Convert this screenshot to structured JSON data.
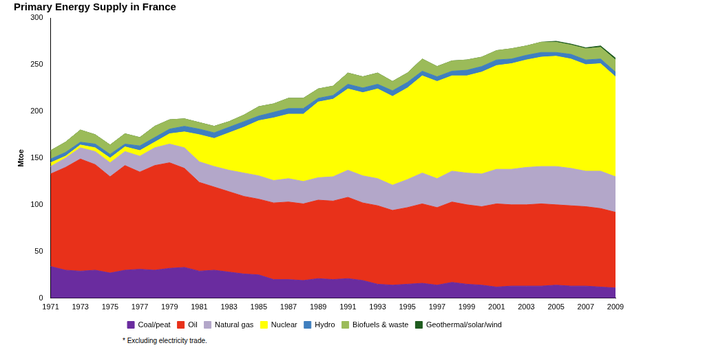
{
  "chart_data": {
    "type": "area",
    "title": "Primary Energy Supply in France",
    "y_label": "Mtoe",
    "annotations": [
      "* Excluding electricity trade."
    ],
    "stacked": true,
    "grid": false,
    "legend": "bottom",
    "categories": [
      "1971",
      null,
      "1973",
      null,
      "1975",
      null,
      "1977",
      null,
      "1979",
      null,
      "1981",
      null,
      "1983",
      null,
      "1985",
      null,
      "1987",
      null,
      "1989",
      null,
      "1991",
      null,
      "1993",
      null,
      "1995",
      null,
      "1997",
      null,
      "1999",
      null,
      "2001",
      null,
      "2003",
      null,
      "2005",
      null,
      "2007",
      null,
      "2009"
    ],
    "ylim": [
      0,
      300
    ],
    "yticks": [
      0,
      50,
      100,
      150,
      200,
      250,
      300
    ],
    "series": [
      {
        "name": "Coal/peat",
        "color": "#6a2c9f",
        "values": [
          34,
          30,
          29,
          30,
          27,
          30,
          31,
          30,
          32,
          33,
          29,
          30,
          28,
          26,
          25,
          20,
          20,
          19,
          21,
          20,
          21,
          19,
          15,
          14,
          15,
          16,
          14,
          17,
          15,
          14,
          12,
          13,
          13,
          13,
          14,
          13,
          13,
          12,
          11
        ]
      },
      {
        "name": "Oil",
        "color": "#e8311a",
        "values": [
          99,
          110,
          120,
          113,
          103,
          112,
          104,
          112,
          113,
          106,
          95,
          89,
          86,
          83,
          81,
          82,
          83,
          82,
          84,
          84,
          87,
          83,
          84,
          80,
          82,
          85,
          83,
          86,
          85,
          84,
          89,
          87,
          87,
          88,
          86,
          86,
          85,
          84,
          81
        ]
      },
      {
        "name": "Natural gas",
        "color": "#b3a7c9",
        "values": [
          8,
          10,
          12,
          14,
          15,
          15,
          17,
          19,
          20,
          22,
          22,
          22,
          23,
          25,
          25,
          24,
          25,
          24,
          24,
          26,
          29,
          29,
          29,
          27,
          30,
          33,
          31,
          33,
          34,
          35,
          37,
          38,
          40,
          40,
          41,
          40,
          38,
          40,
          38
        ]
      },
      {
        "name": "Nuclear",
        "color": "#ffff00",
        "values": [
          4,
          2,
          3,
          4,
          5,
          5,
          6,
          6,
          11,
          17,
          29,
          30,
          40,
          49,
          59,
          67,
          69,
          72,
          81,
          83,
          87,
          89,
          96,
          95,
          98,
          104,
          104,
          102,
          104,
          109,
          111,
          113,
          115,
          117,
          118,
          117,
          114,
          115,
          107
        ]
      },
      {
        "name": "Hydro",
        "color": "#3f7fbf",
        "values": [
          4,
          4,
          3,
          4,
          4,
          3,
          5,
          5,
          5,
          6,
          6,
          6,
          6,
          6,
          5,
          6,
          6,
          6,
          4,
          4,
          5,
          5,
          5,
          6,
          6,
          5,
          5,
          5,
          6,
          6,
          6,
          5,
          5,
          5,
          4,
          5,
          5,
          5,
          5
        ]
      },
      {
        "name": "Biofuels & waste",
        "color": "#9bbb59",
        "values": [
          9,
          11,
          13,
          10,
          10,
          11,
          9,
          12,
          10,
          8,
          7,
          7,
          6,
          7,
          10,
          9,
          11,
          11,
          10,
          10,
          12,
          12,
          12,
          10,
          10,
          13,
          11,
          11,
          11,
          10,
          10,
          11,
          10,
          11,
          11,
          10,
          12,
          12.5,
          13
        ]
      },
      {
        "name": "Geothermal/solar/wind",
        "color": "#1f5c1f",
        "values": [
          0,
          0,
          0,
          0,
          0,
          0,
          0,
          0,
          0,
          0,
          0,
          0,
          0,
          0,
          0,
          0,
          0,
          0,
          0,
          0,
          0,
          0,
          0,
          0,
          0,
          0,
          0,
          0,
          0,
          0,
          0,
          0,
          0,
          0,
          1,
          1,
          1,
          1.5,
          2
        ]
      }
    ]
  }
}
